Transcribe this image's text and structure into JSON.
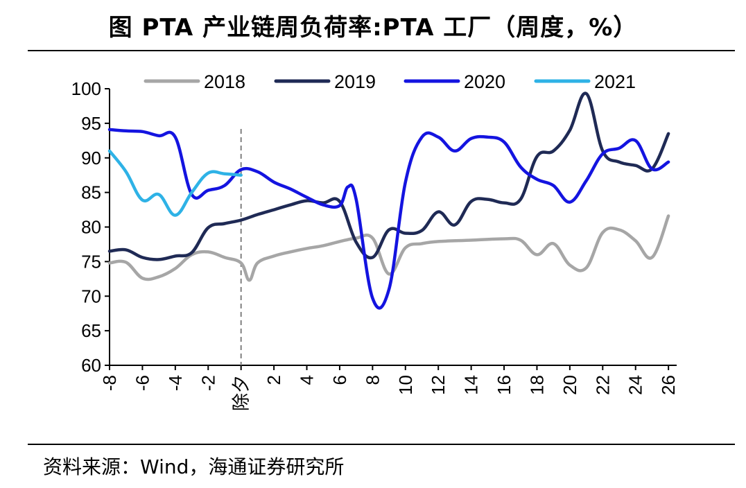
{
  "title": "图  PTA 产业链周负荷率:PTA 工厂（周度，%）",
  "source": "资料来源：Wind，海通证券研究所",
  "chart_data": {
    "type": "line",
    "title": "图  PTA 产业链周负荷率:PTA 工厂（周度，%）",
    "xlabel": "",
    "ylabel": "",
    "xlim": [
      -8,
      26.5
    ],
    "ylim": [
      60,
      100
    ],
    "x_ticks": [
      -8,
      -6,
      -4,
      -2,
      0,
      2,
      4,
      6,
      8,
      10,
      12,
      14,
      16,
      18,
      20,
      22,
      24,
      26
    ],
    "x_tick_labels": [
      "-8",
      "-6",
      "-4",
      "-2",
      "除夕",
      "2",
      "4",
      "6",
      "8",
      "10",
      "12",
      "14",
      "16",
      "18",
      "20",
      "22",
      "24",
      "26"
    ],
    "y_ticks": [
      60,
      65,
      70,
      75,
      80,
      85,
      90,
      95,
      100
    ],
    "reference_line": {
      "x": 0,
      "label": "除夕",
      "style": "dashed"
    },
    "grid": false,
    "legend_position": "top",
    "series": [
      {
        "name": "2018",
        "color": "#a6a6a6",
        "points": [
          [
            -8,
            74.8
          ],
          [
            -7,
            74.9
          ],
          [
            -6,
            72.6
          ],
          [
            -5,
            72.8
          ],
          [
            -4,
            74.0
          ],
          [
            -3,
            76.0
          ],
          [
            -2,
            76.4
          ],
          [
            -1,
            75.6
          ],
          [
            0,
            74.8
          ],
          [
            0.5,
            72.3
          ],
          [
            1,
            74.8
          ],
          [
            2,
            75.8
          ],
          [
            3,
            76.4
          ],
          [
            4,
            76.9
          ],
          [
            5,
            77.3
          ],
          [
            6,
            77.9
          ],
          [
            7,
            78.4
          ],
          [
            8,
            78.4
          ],
          [
            9,
            73.2
          ],
          [
            10,
            77.0
          ],
          [
            11,
            77.6
          ],
          [
            12,
            77.9
          ],
          [
            14,
            78.1
          ],
          [
            16,
            78.3
          ],
          [
            17,
            78.1
          ],
          [
            18,
            76.0
          ],
          [
            19,
            77.6
          ],
          [
            20,
            74.5
          ],
          [
            21,
            74.1
          ],
          [
            22,
            79.2
          ],
          [
            23,
            79.6
          ],
          [
            24,
            78.0
          ],
          [
            25,
            75.6
          ],
          [
            26,
            81.6
          ]
        ]
      },
      {
        "name": "2019",
        "color": "#1f2a55",
        "points": [
          [
            -8,
            76.5
          ],
          [
            -7,
            76.7
          ],
          [
            -6,
            75.6
          ],
          [
            -5,
            75.3
          ],
          [
            -4,
            75.8
          ],
          [
            -3,
            76.3
          ],
          [
            -2,
            79.9
          ],
          [
            -1,
            80.5
          ],
          [
            0,
            81.0
          ],
          [
            1,
            81.8
          ],
          [
            2,
            82.5
          ],
          [
            3,
            83.2
          ],
          [
            4,
            83.8
          ],
          [
            5,
            83.5
          ],
          [
            6,
            83.7
          ],
          [
            7,
            77.8
          ],
          [
            8,
            75.6
          ],
          [
            9,
            79.6
          ],
          [
            10,
            79.1
          ],
          [
            11,
            79.5
          ],
          [
            12,
            82.2
          ],
          [
            13,
            80.3
          ],
          [
            14,
            83.7
          ],
          [
            15,
            84.0
          ],
          [
            16,
            83.5
          ],
          [
            17,
            84.0
          ],
          [
            18,
            90.2
          ],
          [
            19,
            91.0
          ],
          [
            20,
            94.0
          ],
          [
            21,
            99.3
          ],
          [
            22,
            91.0
          ],
          [
            23,
            89.4
          ],
          [
            24,
            88.9
          ],
          [
            25,
            88.4
          ],
          [
            26,
            93.5
          ]
        ]
      },
      {
        "name": "2020",
        "color": "#1414e0",
        "points": [
          [
            -8,
            94.1
          ],
          [
            -7,
            93.9
          ],
          [
            -6,
            93.8
          ],
          [
            -5,
            93.2
          ],
          [
            -4,
            93.0
          ],
          [
            -3,
            84.7
          ],
          [
            -2,
            85.3
          ],
          [
            -1,
            86.0
          ],
          [
            0,
            88.3
          ],
          [
            1,
            88.0
          ],
          [
            2,
            86.5
          ],
          [
            3,
            85.5
          ],
          [
            4,
            84.3
          ],
          [
            5,
            83.2
          ],
          [
            6,
            83.1
          ],
          [
            6.5,
            85.8
          ],
          [
            7,
            84.0
          ],
          [
            8,
            69.7
          ],
          [
            9,
            71.0
          ],
          [
            10,
            86.5
          ],
          [
            11,
            93.0
          ],
          [
            12,
            93.0
          ],
          [
            13,
            91.0
          ],
          [
            14,
            92.8
          ],
          [
            15,
            93.0
          ],
          [
            16,
            92.3
          ],
          [
            17,
            88.7
          ],
          [
            18,
            86.9
          ],
          [
            19,
            86.0
          ],
          [
            20,
            83.6
          ],
          [
            21,
            86.7
          ],
          [
            22,
            90.6
          ],
          [
            23,
            91.4
          ],
          [
            24,
            92.5
          ],
          [
            25,
            88.4
          ],
          [
            26,
            89.4
          ]
        ]
      },
      {
        "name": "2021",
        "color": "#2eb2e6",
        "points": [
          [
            -8,
            91.0
          ],
          [
            -7,
            88.0
          ],
          [
            -6,
            83.9
          ],
          [
            -5,
            84.7
          ],
          [
            -4,
            81.7
          ],
          [
            -3,
            85.0
          ],
          [
            -2,
            87.8
          ],
          [
            -1,
            87.7
          ],
          [
            0,
            87.5
          ]
        ]
      }
    ]
  }
}
